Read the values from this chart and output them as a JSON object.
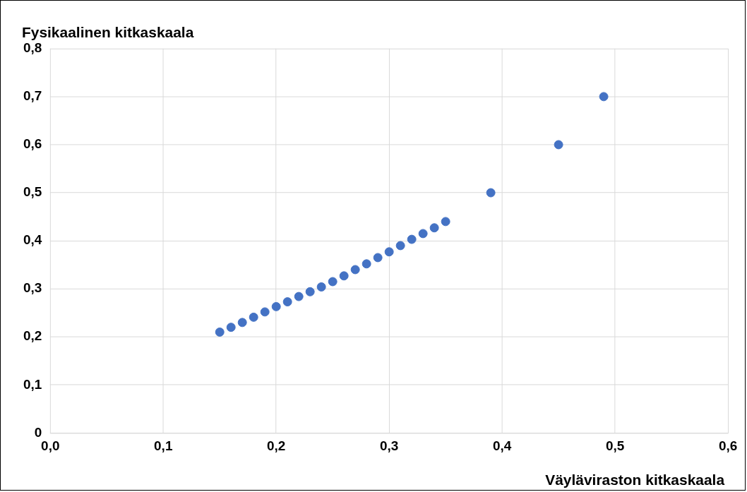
{
  "chart_data": {
    "type": "scatter",
    "ylabel": "Fysikaalinen kitkaskaala",
    "xlabel": "Väyläviraston kitkaskaala",
    "x": [
      0.15,
      0.16,
      0.17,
      0.18,
      0.19,
      0.2,
      0.21,
      0.22,
      0.23,
      0.24,
      0.25,
      0.26,
      0.27,
      0.28,
      0.29,
      0.3,
      0.31,
      0.32,
      0.33,
      0.34,
      0.35,
      0.39,
      0.45,
      0.49
    ],
    "series": [
      {
        "color": "#4472c4",
        "values": [
          0.21,
          0.22,
          0.23,
          0.241,
          0.252,
          0.263,
          0.273,
          0.284,
          0.294,
          0.304,
          0.315,
          0.327,
          0.34,
          0.352,
          0.365,
          0.377,
          0.39,
          0.403,
          0.415,
          0.427,
          0.44,
          0.5,
          0.6,
          0.7
        ]
      }
    ],
    "xlim": [
      0,
      0.6
    ],
    "ylim": [
      0,
      0.8
    ],
    "xticks": [
      {
        "value": 0,
        "label": "0,0"
      },
      {
        "value": 0.1,
        "label": "0,1"
      },
      {
        "value": 0.2,
        "label": "0,2"
      },
      {
        "value": 0.3,
        "label": "0,3"
      },
      {
        "value": 0.4,
        "label": "0,4"
      },
      {
        "value": 0.5,
        "label": "0,5"
      },
      {
        "value": 0.6,
        "label": "0,6"
      }
    ],
    "yticks": [
      0,
      {
        "value": 0.1,
        "label": "0,1"
      },
      {
        "value": 0.2,
        "label": "0,2"
      },
      {
        "value": 0.3,
        "label": "0,3"
      },
      {
        "value": 0.4,
        "label": "0,4"
      },
      {
        "value": 0.5,
        "label": "0,5"
      },
      {
        "value": 0.6,
        "label": "0,6"
      },
      {
        "value": 0.7,
        "label": "0,7"
      },
      {
        "value": 0.8,
        "label": "0,8"
      }
    ],
    "grid": true,
    "legend": false,
    "marker": "circle"
  }
}
